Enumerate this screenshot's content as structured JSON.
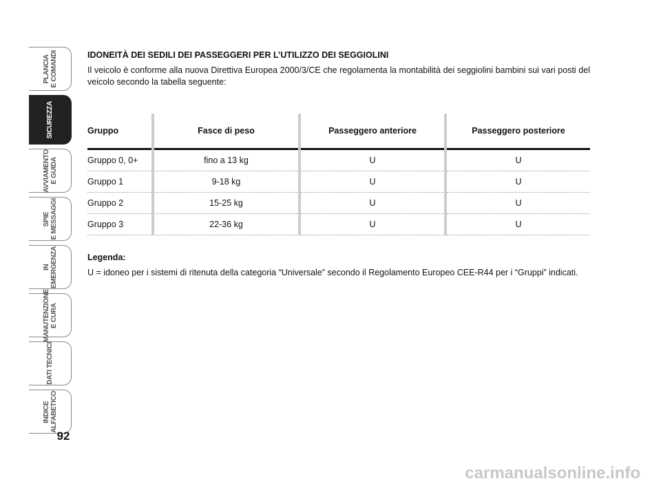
{
  "sidebar": {
    "tabs": [
      [
        "PLANCIA",
        "E COMANDI"
      ],
      [
        "SICUREZZA"
      ],
      [
        "AVVIAMENTO",
        "E GUIDA"
      ],
      [
        "SPIE",
        "E MESSAGGI"
      ],
      [
        "IN EMERGENZA"
      ],
      [
        "MANUTENZIONE",
        "E CURA"
      ],
      [
        "DATI TECNICI"
      ],
      [
        "INDICE",
        "ALFABETICO"
      ]
    ]
  },
  "page_number": "92",
  "section": {
    "title": "IDONEITÀ DEI SEDILI DEI PASSEGGERI PER L’UTILIZZO DEI SEGGIOLINI",
    "intro": "Il veicolo è conforme alla nuova Direttiva Europea 2000/3/CE che regolamenta la montabilità dei seggiolini bambini sui vari posti del veicolo secondo la tabella seguente:"
  },
  "table": {
    "header": [
      "Gruppo",
      "Fasce di peso",
      "Passeggero anteriore",
      "Passeggero posteriore"
    ],
    "rows": [
      [
        "Gruppo 0, 0+",
        "fino a 13 kg",
        "U",
        "U"
      ],
      [
        "Gruppo 1",
        "9-18 kg",
        "U",
        "U"
      ],
      [
        "Gruppo 2",
        "15-25 kg",
        "U",
        "U"
      ],
      [
        "Gruppo 3",
        "22-36 kg",
        "U",
        "U"
      ]
    ]
  },
  "legend": {
    "title": "Legenda:",
    "text": "U = idoneo per i sistemi di ritenuta della categoria “Universale” secondo il Regolamento Europeo CEE-R44 per i “Gruppi” indicati."
  },
  "watermark": "carmanualsonline.info"
}
